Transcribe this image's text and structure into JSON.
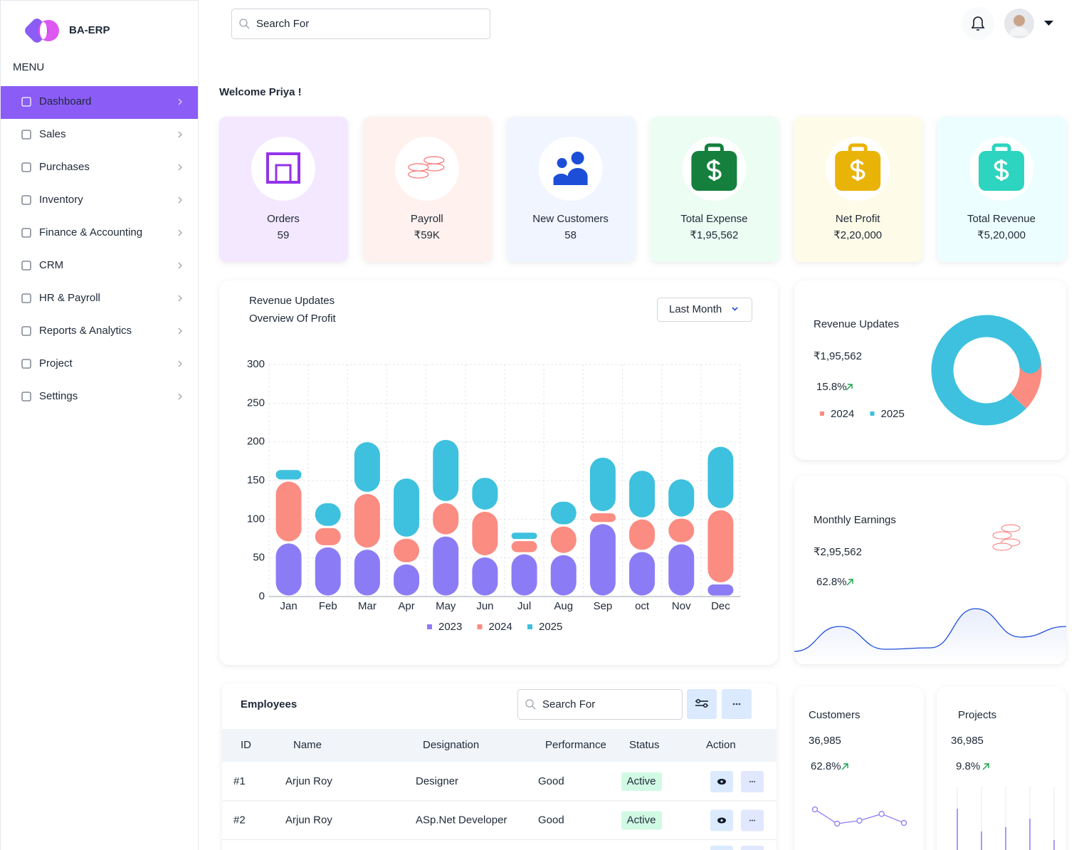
{
  "brand": "BA-ERP",
  "menu_label": "MENU",
  "menu": [
    "Dashboard",
    "Sales",
    "Purchases",
    "Inventory",
    "Finance & Accounting",
    "CRM",
    "HR & Payroll",
    "Reports & Analytics",
    "Project",
    "Settings"
  ],
  "search_placeholder": "Search For",
  "welcome": "Welcome Priya !",
  "stats": [
    {
      "label": "Orders",
      "value": 59
    },
    {
      "label": "Payroll",
      "value": "₹59K"
    },
    {
      "label": "New Customers",
      "value": 58
    },
    {
      "label": "Total Expense",
      "value": "₹1,95,562"
    },
    {
      "label": "Net Profit",
      "value": "₹2,20,000"
    },
    {
      "label": "Total Revenue",
      "value": "₹5,20,000"
    }
  ],
  "chart_data": [
    {
      "type": "bar",
      "stacked": true,
      "title": "Revenue Updates",
      "subtitle": "Overview Of Profit",
      "filter": "Last Month",
      "categories": [
        "Jan",
        "Feb",
        "Mar",
        "Apr",
        "May",
        "Jun",
        "Jul",
        "Aug",
        "Sep",
        "oct",
        "Nov",
        "Dec"
      ],
      "series": [
        {
          "name": "2023",
          "color": "#8b7cf6",
          "values": [
            70,
            65,
            62,
            43,
            79,
            52,
            56,
            55,
            95,
            59,
            69,
            17
          ]
        },
        {
          "name": "2024",
          "color": "#fb8c82",
          "values": [
            80,
            25,
            72,
            33,
            43,
            59,
            17,
            37,
            14,
            42,
            33,
            96
          ]
        },
        {
          "name": "2025",
          "color": "#3ec1de",
          "values": [
            15,
            32,
            67,
            78,
            82,
            44,
            11,
            32,
            72,
            63,
            51,
            82
          ]
        }
      ],
      "ylim": [
        0,
        300
      ],
      "yticks": [
        0,
        50,
        100,
        150,
        200,
        250,
        300
      ],
      "grid": true
    },
    {
      "type": "donut",
      "title": "Revenue Updates",
      "value": "₹1,95,562",
      "change": "15.8%",
      "categories": [
        "2024",
        "2025"
      ],
      "values": [
        15,
        85
      ],
      "colors": [
        "#fb8c82",
        "#3ec1de"
      ]
    },
    {
      "type": "area",
      "title": "Monthly Earnings",
      "value": "₹2,95,562",
      "change": "62.8%",
      "values": [
        5,
        40,
        8,
        10,
        65,
        25,
        40
      ],
      "color": "#1d4ed8"
    },
    {
      "type": "line",
      "title": "Customers",
      "value": "36,985",
      "change": "62.8%",
      "values": [
        22,
        3,
        7,
        16,
        4
      ],
      "color": "#8b7cf6"
    },
    {
      "type": "bar",
      "title": "Projects",
      "value": "36,985",
      "change": "9.8%",
      "values": [
        58,
        26,
        32,
        44,
        14
      ],
      "color": "#8b7cf6"
    }
  ],
  "employees": {
    "title": "Employees",
    "search_placeholder": "Search For",
    "columns": [
      "ID",
      "Name",
      "Designation",
      "Performance",
      "Status",
      "Action"
    ],
    "rows": [
      [
        "#1",
        "Arjun Roy",
        "Designer",
        "Good",
        "Active"
      ],
      [
        "#2",
        "Arjun Roy",
        "ASp.Net Developer",
        "Good",
        "Active"
      ]
    ]
  }
}
